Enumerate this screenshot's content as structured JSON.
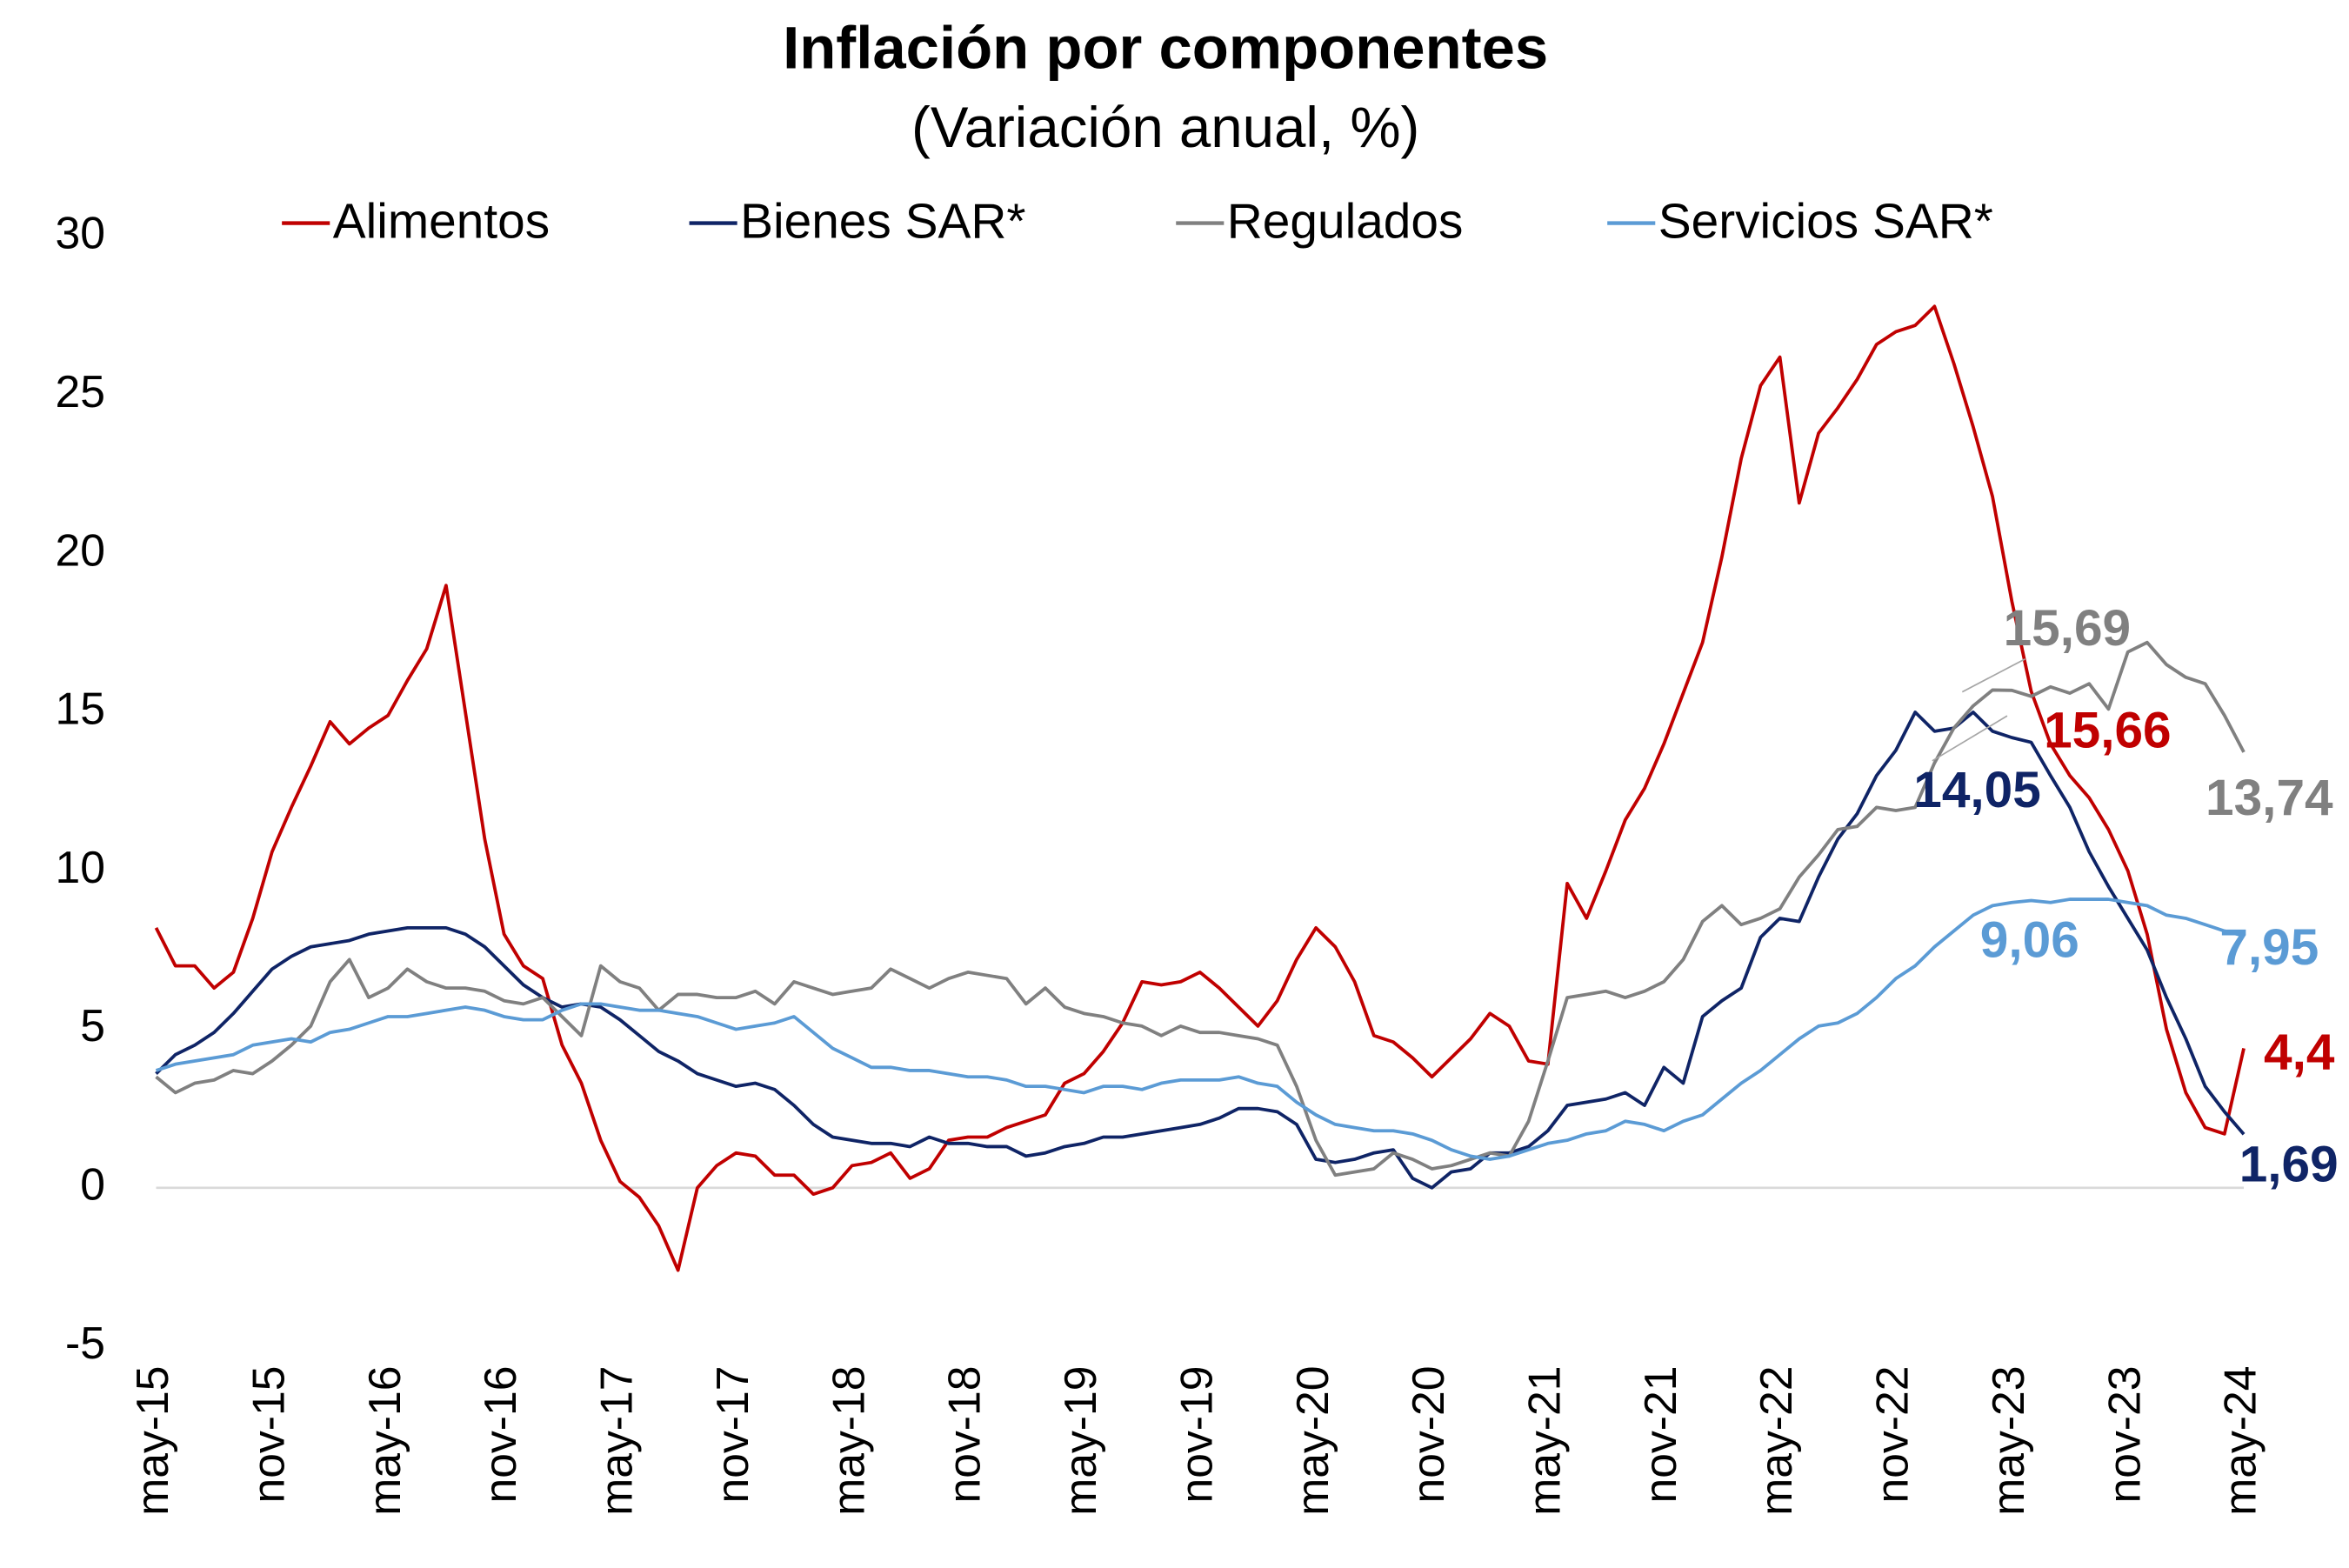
{
  "chart_data": {
    "type": "line",
    "title": "Inflación por componentes",
    "subtitle": "(Variación anual, %)",
    "legend": "top",
    "categories": [
      "may-15",
      null,
      null,
      null,
      null,
      null,
      "nov-15",
      null,
      null,
      null,
      null,
      null,
      "may-16",
      null,
      null,
      null,
      null,
      null,
      "nov-16",
      null,
      null,
      null,
      null,
      null,
      "may-17",
      null,
      null,
      null,
      null,
      null,
      "nov-17",
      null,
      null,
      null,
      null,
      null,
      "may-18",
      null,
      null,
      null,
      null,
      null,
      "nov-18",
      null,
      null,
      null,
      null,
      null,
      "may-19",
      null,
      null,
      null,
      null,
      null,
      "nov-19",
      null,
      null,
      null,
      null,
      null,
      "may-20",
      null,
      null,
      null,
      null,
      null,
      "nov-20",
      null,
      null,
      null,
      null,
      null,
      "may-21",
      null,
      null,
      null,
      null,
      null,
      "nov-21",
      null,
      null,
      null,
      null,
      null,
      "may-22",
      null,
      null,
      null,
      null,
      null,
      "nov-22",
      null,
      null,
      null,
      null,
      null,
      "may-23",
      null,
      null,
      null,
      null,
      null,
      "nov-23",
      null,
      null,
      null,
      null,
      null,
      "may-24"
    ],
    "ylim": [
      -5,
      30
    ],
    "yticks": [
      -5,
      0,
      5,
      10,
      15,
      20,
      25,
      30
    ],
    "grid": false,
    "series": [
      {
        "name": "Alimentos",
        "color": "#c00000",
        "values": [
          8.2,
          7.0,
          7.0,
          6.3,
          6.8,
          8.5,
          10.6,
          12.0,
          13.3,
          14.7,
          14.0,
          14.5,
          14.9,
          16.0,
          17.0,
          19.0,
          15.0,
          11.0,
          8.0,
          7.0,
          6.6,
          4.5,
          3.3,
          1.5,
          0.2,
          -0.3,
          -1.2,
          -2.6,
          0.0,
          0.7,
          1.1,
          1.0,
          0.4,
          0.4,
          -0.2,
          0.0,
          0.7,
          0.8,
          1.1,
          0.3,
          0.6,
          1.5,
          1.6,
          1.6,
          1.9,
          2.1,
          2.3,
          3.3,
          3.6,
          4.3,
          5.2,
          6.5,
          6.4,
          6.5,
          6.8,
          6.3,
          5.7,
          5.1,
          5.9,
          7.2,
          8.2,
          7.6,
          6.5,
          4.8,
          4.6,
          4.1,
          3.5,
          4.1,
          4.7,
          5.5,
          5.1,
          4.0,
          3.9,
          9.6,
          8.5,
          10.0,
          11.6,
          12.6,
          14.0,
          15.6,
          17.2,
          19.9,
          23.0,
          25.3,
          26.2,
          21.6,
          23.8,
          24.6,
          25.5,
          26.6,
          27.0,
          27.2,
          27.8,
          26.0,
          24.0,
          21.8,
          18.5,
          15.66,
          14.0,
          13.0,
          12.3,
          11.3,
          10.0,
          8.0,
          5.0,
          3.0,
          1.9,
          1.7,
          4.4
        ],
        "value_labels": [
          null,
          null,
          null,
          null,
          null,
          null,
          null,
          null,
          null,
          null,
          null,
          null,
          null,
          null,
          null,
          null,
          null,
          null,
          null,
          null,
          null,
          null,
          null,
          null,
          null,
          null,
          null,
          null,
          null,
          null,
          null,
          null,
          null,
          null,
          null,
          null,
          null,
          null,
          null,
          null,
          null,
          null,
          null,
          null,
          null,
          null,
          null,
          null,
          null,
          null,
          null,
          null,
          null,
          null,
          null,
          null,
          null,
          null,
          null,
          null,
          null,
          null,
          null,
          null,
          null,
          null,
          null,
          null,
          null,
          null,
          null,
          null,
          null,
          null,
          null,
          null,
          null,
          null,
          null,
          null,
          null,
          null,
          null,
          null,
          null,
          null,
          null,
          null,
          null,
          null,
          null,
          null,
          null,
          null,
          null,
          null,
          null,
          "15,66",
          null,
          null,
          null,
          null,
          null,
          null,
          null,
          null,
          null,
          null,
          "4,4"
        ]
      },
      {
        "name": "Bienes SAR*",
        "color": "#0f2466",
        "values": [
          3.6,
          4.2,
          4.5,
          4.9,
          5.5,
          6.2,
          6.9,
          7.3,
          7.6,
          7.7,
          7.8,
          8.0,
          8.1,
          8.2,
          8.2,
          8.2,
          8.0,
          7.6,
          7.0,
          6.4,
          6.0,
          5.7,
          5.8,
          5.7,
          5.3,
          4.8,
          4.3,
          4.0,
          3.6,
          3.4,
          3.2,
          3.3,
          3.1,
          2.6,
          2.0,
          1.6,
          1.5,
          1.4,
          1.4,
          1.3,
          1.6,
          1.4,
          1.4,
          1.3,
          1.3,
          1.0,
          1.1,
          1.3,
          1.4,
          1.6,
          1.6,
          1.7,
          1.8,
          1.9,
          2.0,
          2.2,
          2.5,
          2.5,
          2.4,
          2.0,
          0.9,
          0.8,
          0.9,
          1.1,
          1.2,
          0.3,
          0.0,
          0.5,
          0.6,
          1.1,
          1.1,
          1.3,
          1.8,
          2.6,
          2.7,
          2.8,
          3.0,
          2.6,
          3.8,
          3.3,
          5.4,
          5.9,
          6.3,
          7.9,
          8.5,
          8.4,
          9.8,
          11.0,
          11.8,
          13.0,
          13.8,
          15.0,
          14.4,
          14.5,
          15.0,
          14.4,
          14.2,
          14.05,
          13.0,
          12.0,
          10.6,
          9.5,
          8.5,
          7.5,
          6.0,
          4.7,
          3.2,
          2.4,
          1.69
        ],
        "value_labels": [
          null,
          null,
          null,
          null,
          null,
          null,
          null,
          null,
          null,
          null,
          null,
          null,
          null,
          null,
          null,
          null,
          null,
          null,
          null,
          null,
          null,
          null,
          null,
          null,
          null,
          null,
          null,
          null,
          null,
          null,
          null,
          null,
          null,
          null,
          null,
          null,
          null,
          null,
          null,
          null,
          null,
          null,
          null,
          null,
          null,
          null,
          null,
          null,
          null,
          null,
          null,
          null,
          null,
          null,
          null,
          null,
          null,
          null,
          null,
          null,
          null,
          null,
          null,
          null,
          null,
          null,
          null,
          null,
          null,
          null,
          null,
          null,
          null,
          null,
          null,
          null,
          null,
          null,
          null,
          null,
          null,
          null,
          null,
          null,
          null,
          null,
          null,
          null,
          null,
          null,
          null,
          null,
          null,
          null,
          null,
          null,
          null,
          "14,05",
          null,
          null,
          null,
          null,
          null,
          null,
          null,
          null,
          null,
          null,
          "1,69"
        ]
      },
      {
        "name": "Regulados",
        "color": "#808080",
        "values": [
          3.5,
          3.0,
          3.3,
          3.4,
          3.7,
          3.6,
          4.0,
          4.5,
          5.1,
          6.5,
          7.2,
          6.0,
          6.3,
          6.9,
          6.5,
          6.3,
          6.3,
          6.2,
          5.9,
          5.8,
          6.0,
          5.4,
          4.8,
          7.0,
          6.5,
          6.3,
          5.6,
          6.1,
          6.1,
          6.0,
          6.0,
          6.2,
          5.8,
          6.5,
          6.3,
          6.1,
          6.2,
          6.3,
          6.9,
          6.6,
          6.3,
          6.6,
          6.8,
          6.7,
          6.6,
          5.8,
          6.3,
          5.7,
          5.5,
          5.4,
          5.2,
          5.1,
          4.8,
          5.1,
          4.9,
          4.9,
          4.8,
          4.7,
          4.5,
          3.2,
          1.5,
          0.4,
          0.5,
          0.6,
          1.1,
          0.9,
          0.6,
          0.7,
          0.9,
          1.1,
          1.0,
          2.1,
          4.0,
          6.0,
          6.1,
          6.2,
          6.0,
          6.2,
          6.5,
          7.2,
          8.4,
          8.9,
          8.3,
          8.5,
          8.8,
          9.8,
          10.5,
          11.3,
          11.4,
          12.0,
          11.9,
          12.0,
          13.4,
          14.5,
          15.2,
          15.7,
          15.69,
          15.5,
          15.8,
          15.6,
          15.9,
          15.1,
          16.9,
          17.2,
          16.5,
          16.1,
          15.9,
          14.9,
          13.74
        ],
        "value_labels": [
          null,
          null,
          null,
          null,
          null,
          null,
          null,
          null,
          null,
          null,
          null,
          null,
          null,
          null,
          null,
          null,
          null,
          null,
          null,
          null,
          null,
          null,
          null,
          null,
          null,
          null,
          null,
          null,
          null,
          null,
          null,
          null,
          null,
          null,
          null,
          null,
          null,
          null,
          null,
          null,
          null,
          null,
          null,
          null,
          null,
          null,
          null,
          null,
          null,
          null,
          null,
          null,
          null,
          null,
          null,
          null,
          null,
          null,
          null,
          null,
          null,
          null,
          null,
          null,
          null,
          null,
          null,
          null,
          null,
          null,
          null,
          null,
          null,
          null,
          null,
          null,
          null,
          null,
          null,
          null,
          null,
          null,
          null,
          null,
          null,
          null,
          null,
          null,
          null,
          null,
          null,
          null,
          null,
          null,
          null,
          null,
          "15,69",
          null,
          null,
          null,
          null,
          null,
          null,
          null,
          null,
          null,
          null,
          null,
          "13,74"
        ]
      },
      {
        "name": "Servicios SAR*",
        "color": "#5b9bd5",
        "values": [
          3.7,
          3.9,
          4.0,
          4.1,
          4.2,
          4.5,
          4.6,
          4.7,
          4.6,
          4.9,
          5.0,
          5.2,
          5.4,
          5.4,
          5.5,
          5.6,
          5.7,
          5.6,
          5.4,
          5.3,
          5.3,
          5.6,
          5.8,
          5.8,
          5.7,
          5.6,
          5.6,
          5.5,
          5.4,
          5.2,
          5.0,
          5.1,
          5.2,
          5.4,
          4.9,
          4.4,
          4.1,
          3.8,
          3.8,
          3.7,
          3.7,
          3.6,
          3.5,
          3.5,
          3.4,
          3.2,
          3.2,
          3.1,
          3.0,
          3.2,
          3.2,
          3.1,
          3.3,
          3.4,
          3.4,
          3.4,
          3.5,
          3.3,
          3.2,
          2.7,
          2.3,
          2.0,
          1.9,
          1.8,
          1.8,
          1.7,
          1.5,
          1.2,
          1.0,
          0.9,
          1.0,
          1.2,
          1.4,
          1.5,
          1.7,
          1.8,
          2.1,
          2.0,
          1.8,
          2.1,
          2.3,
          2.8,
          3.3,
          3.7,
          4.2,
          4.7,
          5.1,
          5.2,
          5.5,
          6.0,
          6.6,
          7.0,
          7.6,
          8.1,
          8.6,
          8.9,
          9.0,
          9.06,
          9.0,
          9.1,
          9.1,
          9.1,
          9.0,
          8.9,
          8.6,
          8.5,
          8.3,
          8.1,
          7.95
        ],
        "value_labels": [
          null,
          null,
          null,
          null,
          null,
          null,
          null,
          null,
          null,
          null,
          null,
          null,
          null,
          null,
          null,
          null,
          null,
          null,
          null,
          null,
          null,
          null,
          null,
          null,
          null,
          null,
          null,
          null,
          null,
          null,
          null,
          null,
          null,
          null,
          null,
          null,
          null,
          null,
          null,
          null,
          null,
          null,
          null,
          null,
          null,
          null,
          null,
          null,
          null,
          null,
          null,
          null,
          null,
          null,
          null,
          null,
          null,
          null,
          null,
          null,
          null,
          null,
          null,
          null,
          null,
          null,
          null,
          null,
          null,
          null,
          null,
          null,
          null,
          null,
          null,
          null,
          null,
          null,
          null,
          null,
          null,
          null,
          null,
          null,
          null,
          null,
          null,
          null,
          null,
          null,
          null,
          null,
          null,
          null,
          null,
          null,
          null,
          "9,06",
          null,
          null,
          null,
          null,
          null,
          null,
          null,
          null,
          null,
          null,
          "7,95"
        ]
      }
    ]
  }
}
